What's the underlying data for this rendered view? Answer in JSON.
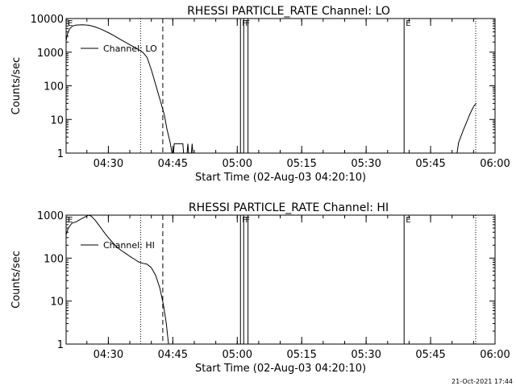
{
  "chart_data": [
    {
      "type": "line",
      "title": "RHESSI PARTICLE_RATE Channel: LO",
      "xlabel": "Start Time (02-Aug-03 04:20:10)",
      "ylabel": "Counts/sec",
      "yscale": "log",
      "xlim": [
        "04:20:10",
        "06:00:00"
      ],
      "ylim": [
        1,
        10000
      ],
      "x_ticks": [
        "04:30",
        "04:45",
        "05:00",
        "05:15",
        "05:30",
        "05:45",
        "06:00"
      ],
      "y_ticks": [
        "1",
        "10",
        "100",
        "1000",
        "10000"
      ],
      "legend": "Channel: LO",
      "legend_position": "top-left",
      "markers": [
        {
          "time": "04:37:30",
          "style": "dotted",
          "label": ""
        },
        {
          "time": "04:42:40",
          "style": "dashed",
          "label": ""
        },
        {
          "time": "05:00:45",
          "style": "solid",
          "label": "F"
        },
        {
          "time": "05:01:30",
          "style": "solid",
          "label": "F"
        },
        {
          "time": "05:02:30",
          "style": "solid",
          "label": ""
        },
        {
          "time": "05:38:50",
          "style": "solid",
          "label": "E"
        },
        {
          "time": "05:55:30",
          "style": "dotted",
          "label": ""
        },
        {
          "time": "04:20:10",
          "style": "none",
          "label": "E"
        }
      ],
      "series": [
        {
          "name": "Channel: LO",
          "segments": [
            [
              [
                "04:20:10",
                2200
              ],
              [
                "04:20:30",
                3500
              ],
              [
                "04:21:00",
                5000
              ],
              [
                "04:21:40",
                6000
              ],
              [
                "04:22:30",
                6400
              ],
              [
                "04:24:00",
                6500
              ],
              [
                "04:25:30",
                6300
              ],
              [
                "04:27:00",
                5600
              ],
              [
                "04:28:30",
                4700
              ],
              [
                "04:30:00",
                3800
              ],
              [
                "04:31:30",
                3000
              ],
              [
                "04:33:00",
                2300
              ],
              [
                "04:34:30",
                1800
              ],
              [
                "04:36:00",
                1400
              ],
              [
                "04:37:00",
                1200
              ],
              [
                "04:38:00",
                1000
              ],
              [
                "04:39:00",
                700
              ],
              [
                "04:40:00",
                300
              ],
              [
                "04:41:00",
                110
              ],
              [
                "04:42:00",
                40
              ],
              [
                "04:43:00",
                14
              ],
              [
                "04:43:40",
                5
              ],
              [
                "04:44:20",
                2.2
              ],
              [
                "04:44:50",
                1
              ]
            ],
            [
              [
                "04:45:10",
                1
              ],
              [
                "04:45:20",
                1.9
              ],
              [
                "04:47:20",
                1.9
              ],
              [
                "04:47:30",
                1
              ]
            ],
            [
              [
                "04:48:20",
                1
              ],
              [
                "04:48:30",
                1.9
              ],
              [
                "04:48:40",
                1
              ]
            ],
            [
              [
                "04:49:20",
                1
              ],
              [
                "04:49:30",
                1.9
              ],
              [
                "04:49:40",
                1
              ]
            ],
            [
              [
                "05:51:10",
                1
              ],
              [
                "05:51:30",
                2
              ],
              [
                "05:52:00",
                3
              ],
              [
                "05:52:40",
                5
              ],
              [
                "05:53:20",
                8
              ],
              [
                "05:54:00",
                13
              ],
              [
                "05:54:40",
                20
              ],
              [
                "05:55:10",
                26
              ],
              [
                "05:55:40",
                30
              ]
            ]
          ]
        }
      ]
    },
    {
      "type": "line",
      "title": "RHESSI PARTICLE_RATE Channel: HI",
      "xlabel": "Start Time (02-Aug-03 04:20:10)",
      "ylabel": "Counts/sec",
      "yscale": "log",
      "xlim": [
        "04:20:10",
        "06:00:00"
      ],
      "ylim": [
        1,
        1000
      ],
      "x_ticks": [
        "04:30",
        "04:45",
        "05:00",
        "05:15",
        "05:30",
        "05:45",
        "06:00"
      ],
      "y_ticks": [
        "1",
        "10",
        "100",
        "1000"
      ],
      "legend": "Channel: HI",
      "legend_position": "top-left",
      "markers": [
        {
          "time": "04:37:30",
          "style": "dotted",
          "label": ""
        },
        {
          "time": "04:42:40",
          "style": "dashed",
          "label": ""
        },
        {
          "time": "05:00:45",
          "style": "solid",
          "label": "F"
        },
        {
          "time": "05:01:30",
          "style": "solid",
          "label": "F"
        },
        {
          "time": "05:02:30",
          "style": "solid",
          "label": ""
        },
        {
          "time": "05:38:50",
          "style": "solid",
          "label": "E"
        },
        {
          "time": "05:55:30",
          "style": "dotted",
          "label": ""
        },
        {
          "time": "04:20:10",
          "style": "none",
          "label": "E"
        }
      ],
      "series": [
        {
          "name": "Channel: HI",
          "segments": [
            [
              [
                "04:20:10",
                350
              ],
              [
                "04:20:40",
                500
              ],
              [
                "04:21:30",
                650
              ],
              [
                "04:22:30",
                700
              ],
              [
                "04:23:30",
                800
              ],
              [
                "04:24:30",
                900
              ],
              [
                "04:25:20",
                1000
              ],
              [
                "04:26:00",
                950
              ],
              [
                "04:27:00",
                750
              ],
              [
                "04:28:00",
                550
              ],
              [
                "04:29:00",
                400
              ],
              [
                "04:30:00",
                300
              ],
              [
                "04:31:00",
                230
              ],
              [
                "04:32:00",
                180
              ],
              [
                "04:33:00",
                150
              ],
              [
                "04:34:00",
                130
              ],
              [
                "04:35:00",
                110
              ],
              [
                "04:36:00",
                95
              ],
              [
                "04:37:00",
                82
              ],
              [
                "04:38:00",
                76
              ],
              [
                "04:39:00",
                72
              ],
              [
                "04:40:00",
                60
              ],
              [
                "04:41:00",
                40
              ],
              [
                "04:42:00",
                20
              ],
              [
                "04:42:50",
                8
              ],
              [
                "04:43:30",
                3
              ],
              [
                "04:44:00",
                1
              ]
            ]
          ]
        }
      ]
    }
  ],
  "footer": {
    "timestamp": "21-Oct-2021 17:44"
  }
}
